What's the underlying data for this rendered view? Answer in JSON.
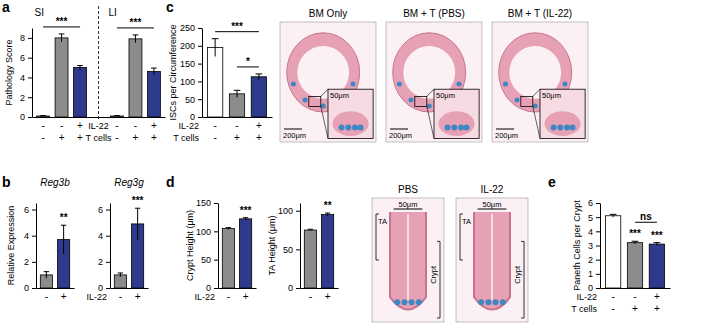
{
  "chart_data": [
    {
      "type": "bar",
      "panel": "a",
      "y_label": "Pathology Score",
      "groups": [
        "SI",
        "LI"
      ],
      "categories": [
        null,
        null,
        null,
        null,
        null,
        null
      ],
      "values": [
        0.1,
        8.0,
        5.0,
        0.1,
        7.9,
        4.6
      ],
      "errors": [
        0.05,
        0.4,
        0.2,
        0.05,
        0.4,
        0.35
      ],
      "colors": [
        "#ffffff",
        "#8c8c8c",
        "#2e3a8c",
        "#ffffff",
        "#8c8c8c",
        "#2e3a8c"
      ],
      "ylim": [
        0,
        9
      ],
      "yticks": [
        0,
        2,
        4,
        6,
        8
      ],
      "x_rows": [
        {
          "label": "IL-22",
          "values": [
            "-",
            "-",
            "+",
            "-",
            "-",
            "+"
          ]
        },
        {
          "label": "T cells",
          "values": [
            "-",
            "+",
            "+",
            "-",
            "+",
            "+"
          ]
        }
      ],
      "annotations": [
        {
          "text": "***",
          "from": 0,
          "to": 2
        },
        {
          "text": "***",
          "from": 3,
          "to": 5
        }
      ]
    },
    {
      "type": "bar",
      "panel": "b",
      "title": "Reg3b",
      "y_label": "Relative Expression",
      "categories": [
        null,
        null
      ],
      "values": [
        1.0,
        3.7
      ],
      "errors": [
        0.25,
        1.1
      ],
      "colors": [
        "#8c8c8c",
        "#2e3a8c"
      ],
      "ylim": [
        0,
        6.5
      ],
      "yticks": [
        0,
        2,
        4,
        6
      ],
      "x_rows": [
        {
          "values": [
            "-",
            "+"
          ]
        }
      ],
      "annotations": [
        {
          "text": "**",
          "from": 1,
          "to": 1
        }
      ]
    },
    {
      "type": "bar",
      "title": "Reg3g",
      "categories": [
        null,
        null
      ],
      "values": [
        1.0,
        4.9
      ],
      "errors": [
        0.15,
        1.2
      ],
      "colors": [
        "#8c8c8c",
        "#2e3a8c"
      ],
      "ylim": [
        0,
        6.5
      ],
      "yticks": [
        0,
        2,
        4,
        6
      ],
      "x_rows": [
        {
          "label": "IL-22",
          "values": [
            "-",
            "+"
          ]
        }
      ],
      "annotations": [
        {
          "text": "***",
          "from": 1,
          "to": 1
        }
      ]
    },
    {
      "type": "bar",
      "panel": "c",
      "y_label": "ISCs per Circumference",
      "categories": [
        null,
        null,
        null
      ],
      "values": [
        195,
        65,
        113
      ],
      "errors": [
        25,
        10,
        8
      ],
      "colors": [
        "#ffffff",
        "#8c8c8c",
        "#2e3a8c"
      ],
      "ylim": [
        0,
        250
      ],
      "yticks": [
        0,
        50,
        100,
        150,
        200,
        250
      ],
      "x_rows": [
        {
          "label": "IL-22",
          "values": [
            "-",
            "-",
            "+"
          ]
        },
        {
          "label": "T cells",
          "values": [
            "-",
            "+",
            "+"
          ]
        }
      ],
      "annotations": [
        {
          "text": "*",
          "from": 1,
          "to": 2
        },
        {
          "text": "***",
          "from": 0,
          "to": 2
        }
      ]
    },
    {
      "type": "bar",
      "panel": "d",
      "y_label": "Crypt Height (μm)",
      "categories": [
        null,
        null
      ],
      "values": [
        105,
        122
      ],
      "errors": [
        1.5,
        2
      ],
      "colors": [
        "#8c8c8c",
        "#2e3a8c"
      ],
      "ylim": [
        0,
        150
      ],
      "yticks": [
        0,
        50,
        100,
        150
      ],
      "x_rows": [
        {
          "label": "IL-22",
          "values": [
            "-",
            "+"
          ]
        }
      ],
      "annotations": [
        {
          "text": "***",
          "from": 1,
          "to": 1
        }
      ]
    },
    {
      "type": "bar",
      "y_label": "TA Height (μm)",
      "categories": [
        null,
        null
      ],
      "values": [
        75,
        95
      ],
      "errors": [
        1,
        2
      ],
      "colors": [
        "#8c8c8c",
        "#2e3a8c"
      ],
      "ylim": [
        0,
        110
      ],
      "yticks": [
        0,
        50,
        100
      ],
      "x_rows": [
        {
          "values": [
            "-",
            "+"
          ]
        }
      ],
      "annotations": [
        {
          "text": "**",
          "from": 1,
          "to": 1
        }
      ]
    },
    {
      "type": "bar",
      "panel": "e",
      "y_label": "Paneth Cells per Crypt",
      "categories": [
        null,
        null,
        null
      ],
      "values": [
        5.1,
        3.2,
        3.1
      ],
      "errors": [
        0.1,
        0.1,
        0.1
      ],
      "colors": [
        "#ffffff",
        "#8c8c8c",
        "#2e3a8c"
      ],
      "ylim": [
        0,
        6
      ],
      "yticks": [
        0,
        1,
        2,
        3,
        4,
        5,
        6
      ],
      "x_rows": [
        {
          "label": "IL-22",
          "values": [
            "-",
            "-",
            "+"
          ]
        },
        {
          "label": "T cells",
          "values": [
            "-",
            "+",
            "+"
          ]
        }
      ],
      "annotations": [
        {
          "text": "***",
          "from": 1,
          "to": 1
        },
        {
          "text": "***",
          "from": 2,
          "to": 2
        },
        {
          "text": "ns",
          "from": 1,
          "to": 2
        }
      ]
    }
  ],
  "images": [
    {
      "title": "BM Only",
      "scale": "200μm",
      "inset_scale": "50μm"
    },
    {
      "title": "BM + T (PBS)",
      "scale": "200μm",
      "inset_scale": "50μm"
    },
    {
      "title": "BM + T (IL-22)",
      "scale": "200μm",
      "inset_scale": "50μm"
    },
    {
      "title": "PBS",
      "scale": "50μm",
      "labels": [
        "TA",
        "Crypt"
      ]
    },
    {
      "title": "IL-22",
      "scale": "50μm",
      "labels": [
        "TA",
        "Crypt"
      ]
    }
  ]
}
